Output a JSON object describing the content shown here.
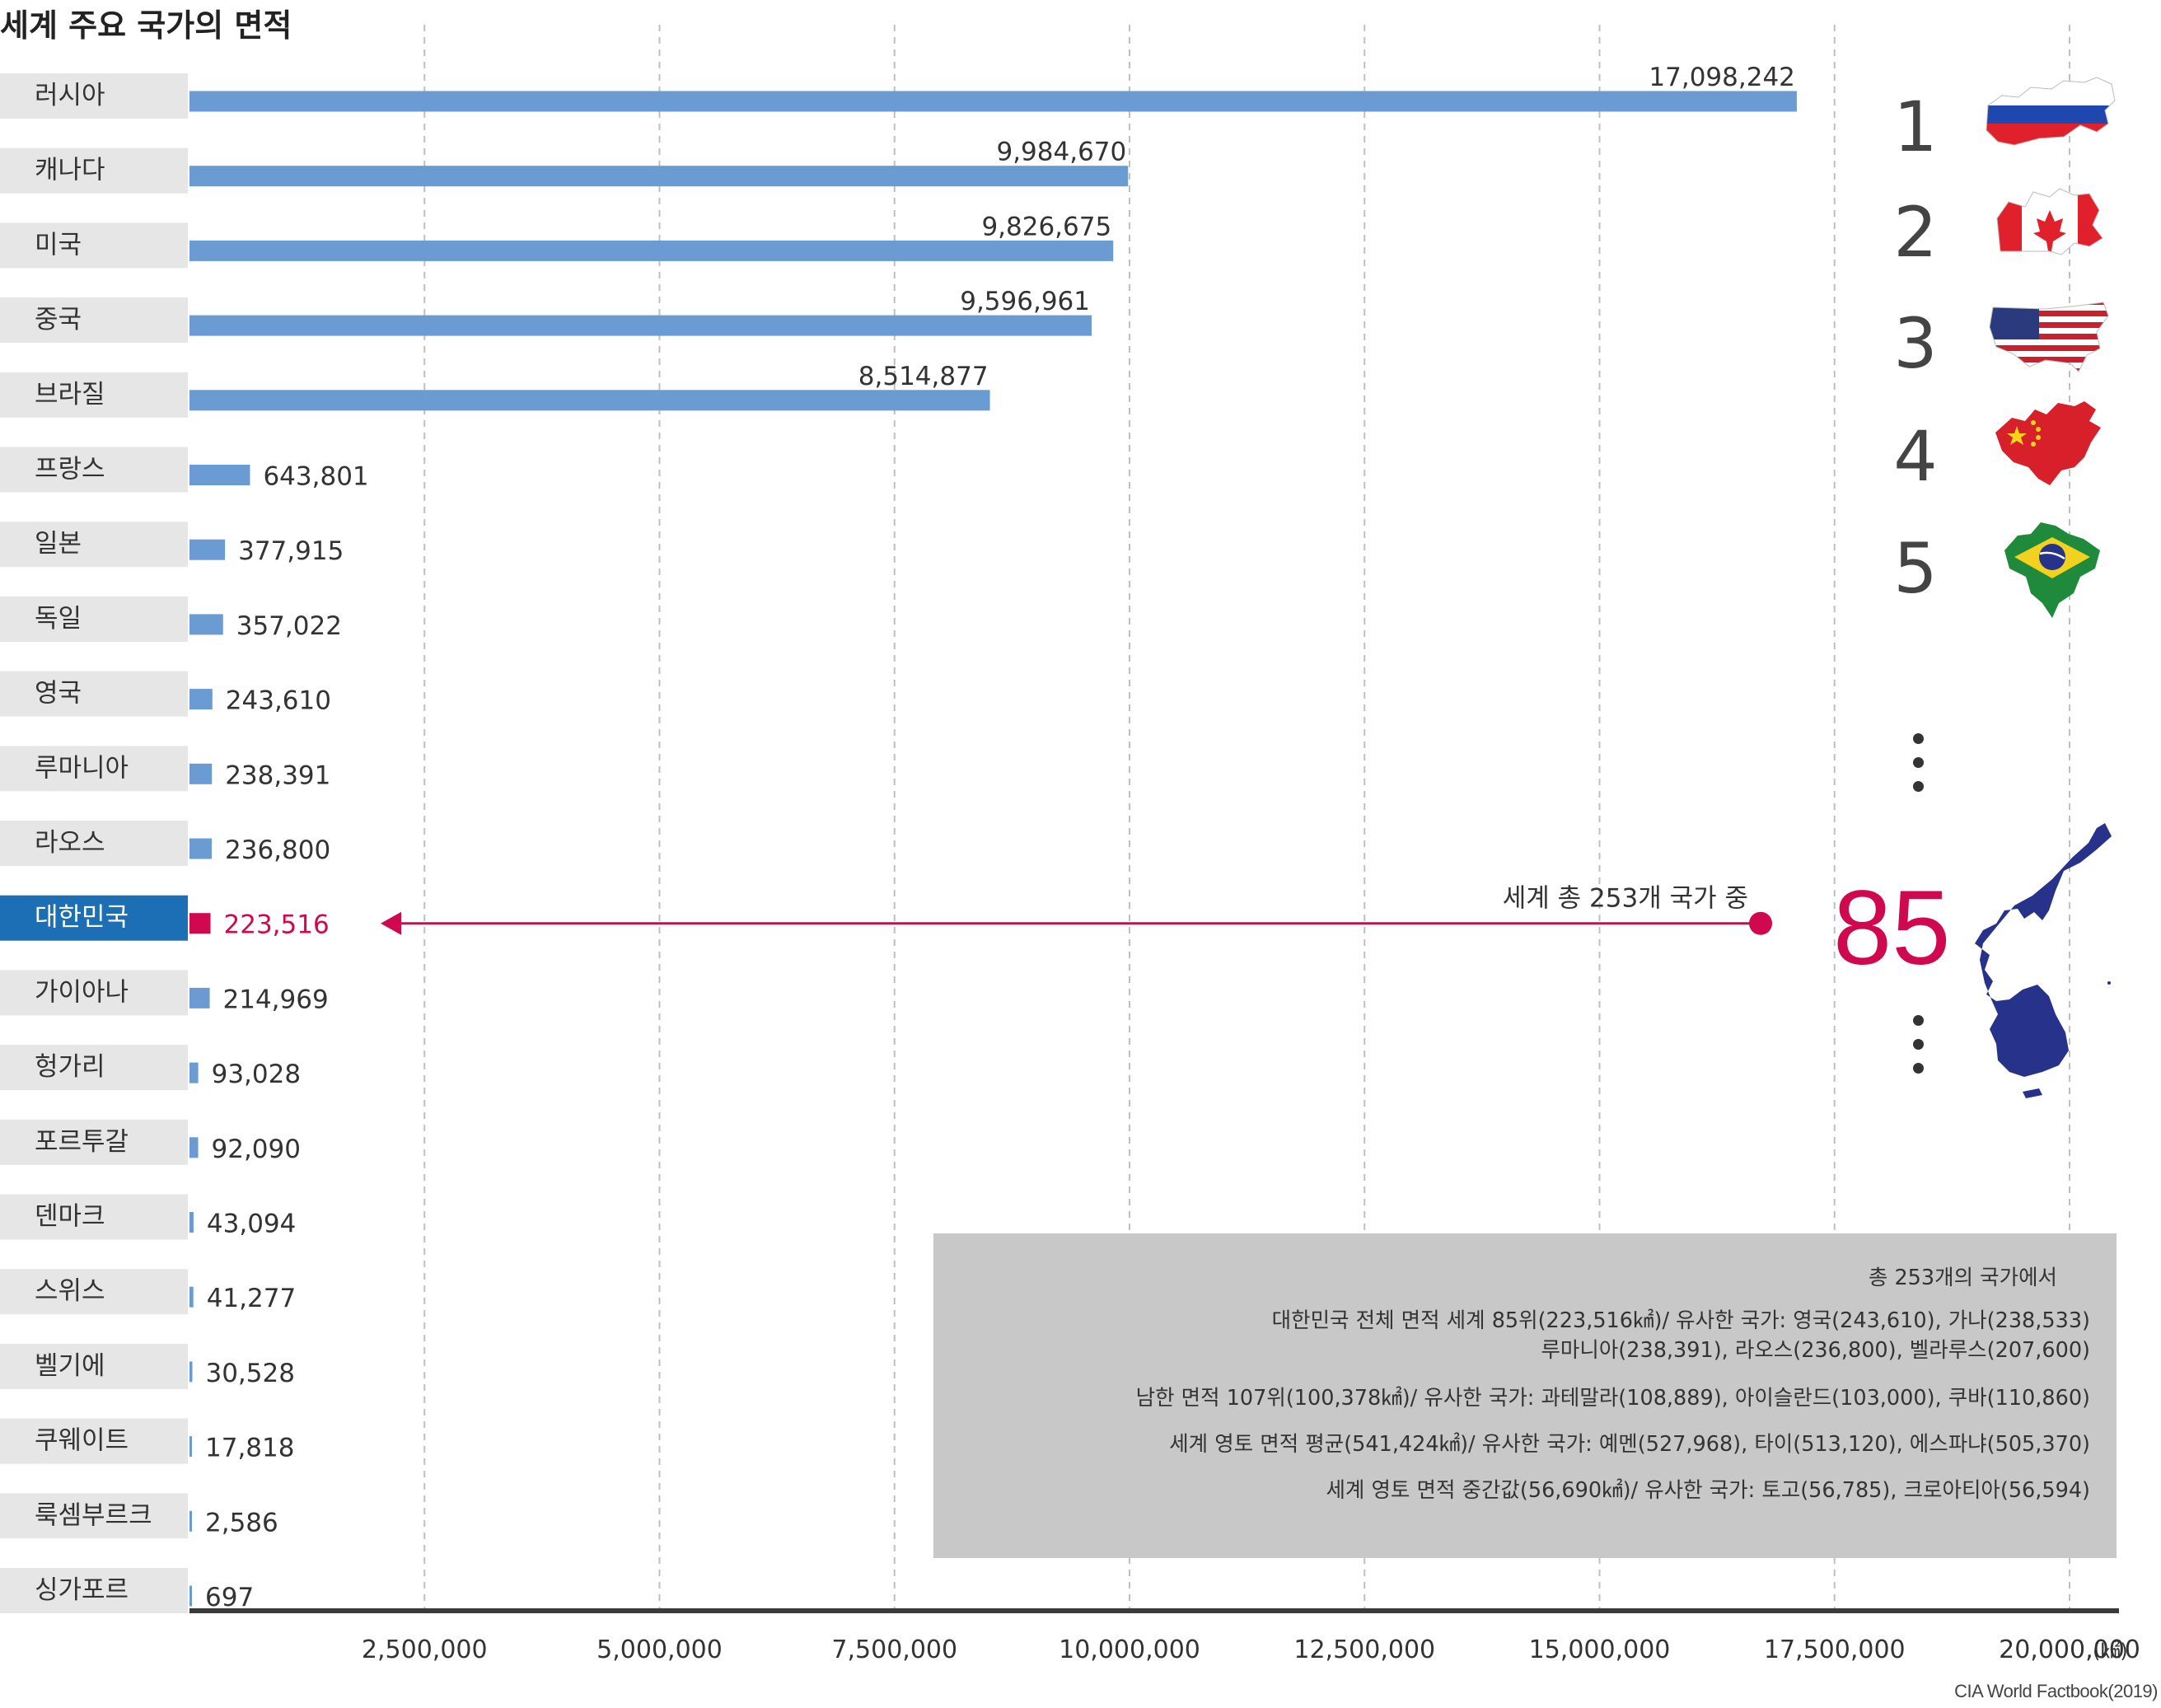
{
  "title": "세계 주요 국가의 면적",
  "chart_data": {
    "type": "bar",
    "orientation": "horizontal",
    "title": "세계 주요 국가의 면적",
    "categories": [
      "러시아",
      "캐나다",
      "미국",
      "중국",
      "브라질",
      "프랑스",
      "일본",
      "독일",
      "영국",
      "루마니아",
      "라오스",
      "대한민국",
      "가이아나",
      "헝가리",
      "포르투갈",
      "덴마크",
      "스위스",
      "벨기에",
      "쿠웨이트",
      "룩셈부르크",
      "싱가포르"
    ],
    "values": [
      17098242,
      9984670,
      9826675,
      9596961,
      8514877,
      643801,
      377915,
      357022,
      243610,
      238391,
      236800,
      223516,
      214969,
      93028,
      92090,
      43094,
      41277,
      30528,
      17818,
      2586,
      697
    ],
    "value_labels": [
      "17,098,242",
      "9,984,670",
      "9,826,675",
      "9,596,961",
      "8,514,877",
      "643,801",
      "377,915",
      "357,022",
      "243,610",
      "238,391",
      "236,800",
      "223,516",
      "214,969",
      "93,028",
      "92,090",
      "43,094",
      "41,277",
      "30,528",
      "17,818",
      "2,586",
      "697"
    ],
    "highlight": "대한민국",
    "xlim": [
      0,
      20000000
    ],
    "xticks": [
      2500000,
      5000000,
      7500000,
      10000000,
      12500000,
      15000000,
      17500000,
      20000000
    ],
    "xtick_labels": [
      "2,500,000",
      "5,000,000",
      "7,500,000",
      "10,000,000",
      "12,500,000",
      "15,000,000",
      "17,500,000",
      "20,000,000"
    ],
    "xunit": "(㎢)",
    "grid": true,
    "annotation": "세계 총 253개 국가 중",
    "colors": {
      "bar": "#6a9bd3",
      "highlight": "#d0084e",
      "label_bg": "#e6e6e6",
      "highlight_label_bg": "#1c6fb5",
      "axis": "#3a3a3a",
      "grid": "#bfbfbf"
    }
  },
  "ranking": {
    "top": [
      "1",
      "2",
      "3",
      "4",
      "5"
    ],
    "korea_rank": "85",
    "flags": [
      "russia-flag-map",
      "canada-flag-map",
      "usa-flag-map",
      "china-flag-map",
      "brazil-flag-map",
      "korea-map"
    ]
  },
  "info_box": {
    "lines": [
      "총 253개의 국가에서",
      "대한민국 전체 면적 세계 85위(223,516㎢)/ 유사한 국가: 영국(243,610), 가나(238,533)",
      "루마니아(238,391), 라오스(236,800), 벨라루스(207,600)",
      "남한 면적 107위(100,378㎢)/ 유사한 국가: 과테말라(108,889), 아이슬란드(103,000), 쿠바(110,860)",
      "세계 영토 면적 평균(541,424㎢)/ 유사한 국가: 예멘(527,968), 타이(513,120), 에스파냐(505,370)",
      "세계 영토 면적 중간값(56,690㎢)/ 유사한 국가: 토고(56,785), 크로아티아(56,594)"
    ]
  },
  "source": "CIA World Factbook(2019)"
}
